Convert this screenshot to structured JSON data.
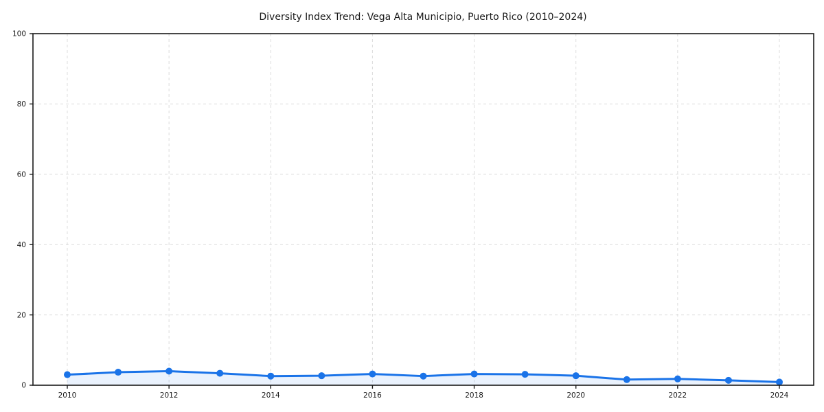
{
  "chart_data": {
    "type": "line",
    "title": "Diversity Index Trend: Vega Alta Municipio, Puerto Rico (2010–2024)",
    "xlabel": "",
    "ylabel": "",
    "x": [
      2010,
      2011,
      2012,
      2013,
      2014,
      2015,
      2016,
      2017,
      2018,
      2019,
      2020,
      2021,
      2022,
      2023,
      2024
    ],
    "series": [
      {
        "name": "Diversity Index",
        "values": [
          3.0,
          3.7,
          4.0,
          3.4,
          2.6,
          2.7,
          3.2,
          2.6,
          3.2,
          3.1,
          2.7,
          1.6,
          1.8,
          1.4,
          0.9
        ],
        "color": "#1a73e8",
        "marker": "circle",
        "area_fill": true
      }
    ],
    "xticks": [
      2010,
      2012,
      2014,
      2016,
      2018,
      2020,
      2022,
      2024
    ],
    "yticks": [
      0,
      20,
      40,
      60,
      80,
      100
    ],
    "ylim": [
      0,
      100
    ],
    "grid": true,
    "grid_style": "dashed",
    "legend": false,
    "colors": {
      "line": "#1a73e8",
      "area_opacity": 0.09,
      "grid": "#dcdcdc",
      "spine": "#1a1a1a",
      "text": "#1a1a1a"
    }
  }
}
